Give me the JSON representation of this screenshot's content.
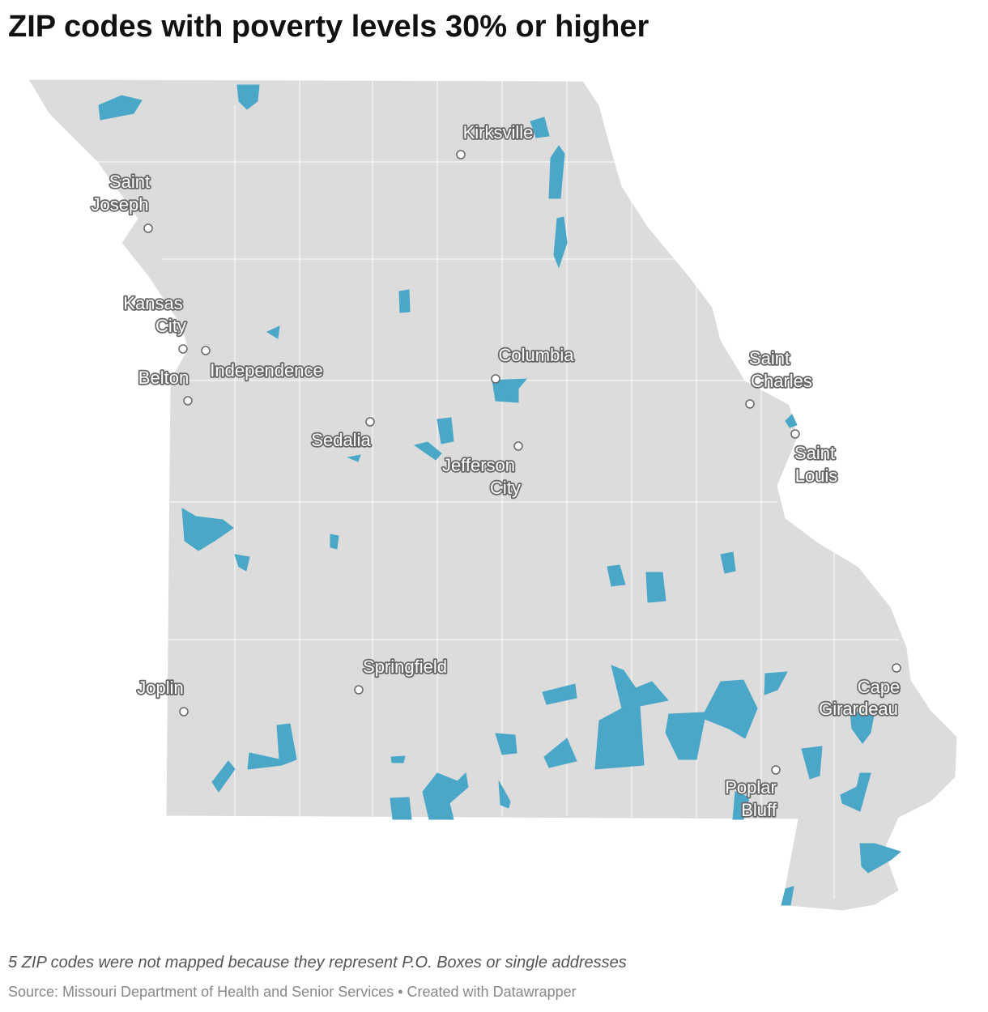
{
  "title": "ZIP codes with poverty levels 30% or higher",
  "cities": [
    {
      "lines": [
        "Kirksville"
      ]
    },
    {
      "lines": [
        "Saint",
        "Joseph"
      ]
    },
    {
      "lines": [
        "Kansas",
        "City"
      ]
    },
    {
      "lines": [
        "Independence"
      ]
    },
    {
      "lines": [
        "Belton"
      ]
    },
    {
      "lines": [
        "Columbia"
      ]
    },
    {
      "lines": [
        "Saint",
        "Charles"
      ]
    },
    {
      "lines": [
        "Saint",
        "Louis"
      ]
    },
    {
      "lines": [
        "Sedalia"
      ]
    },
    {
      "lines": [
        "Jefferson",
        "City"
      ]
    },
    {
      "lines": [
        "Springfield"
      ]
    },
    {
      "lines": [
        "Joplin"
      ]
    },
    {
      "lines": [
        "Cape",
        "Girardeau"
      ]
    },
    {
      "lines": [
        "Poplar",
        "Bluff"
      ]
    }
  ],
  "note": "5 ZIP codes were not mapped because they represent P.O. Boxes or single addresses",
  "source": "Source: Missouri Department of Health and Senior Services • Created with Datawrapper"
}
